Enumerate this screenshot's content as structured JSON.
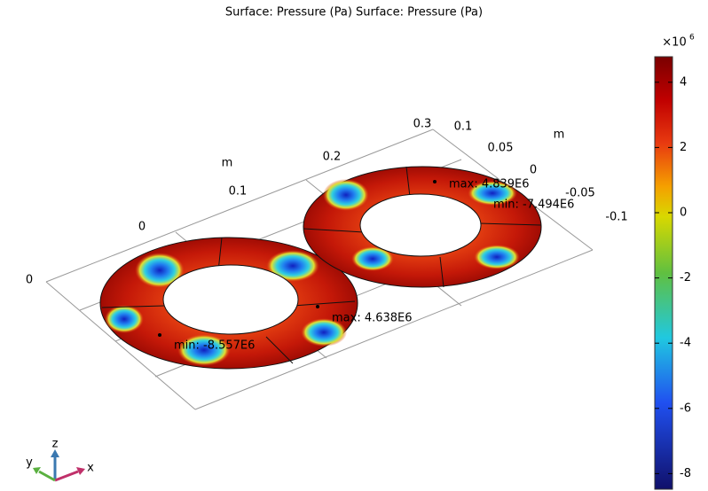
{
  "title": "Surface: Pressure (Pa)  Surface: Pressure (Pa)",
  "colorbar": {
    "multiplier": "×10",
    "exponent": "6",
    "ticks": [
      4,
      2,
      0,
      -2,
      -4,
      -6,
      -8
    ]
  },
  "axes": {
    "x_ticks": [
      "0.3",
      "0.2",
      "0.1",
      "0"
    ],
    "x_unit": "m",
    "y_ticks": [
      "0.1",
      "0.05",
      "0",
      "-0.05",
      "-0.1"
    ],
    "y_unit": "m",
    "z_tick": "0"
  },
  "annotations": [
    "max: 4.839E6",
    "min: -7.494E6",
    "max: 4.638E6",
    "min: -8.557E6"
  ],
  "triad": {
    "z": "z",
    "y": "y",
    "x": "x"
  }
}
